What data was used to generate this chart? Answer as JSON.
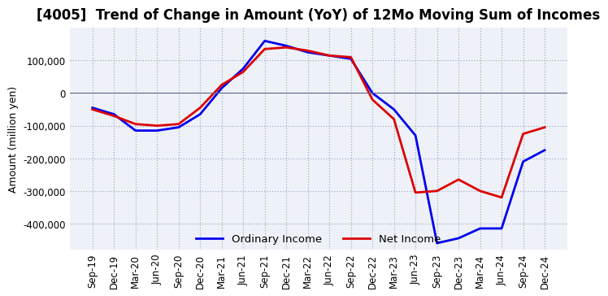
{
  "title": "[4005]  Trend of Change in Amount (YoY) of 12Mo Moving Sum of Incomes",
  "ylabel": "Amount (million yen)",
  "title_fontsize": 12,
  "label_fontsize": 9,
  "tick_fontsize": 8.5,
  "background_color": "#ffffff",
  "plot_bg_color": "#eef2f8",
  "grid_color": "#aaaacc",
  "ordinary_income_color": "#0000ee",
  "net_income_color": "#dd0000",
  "x_labels": [
    "Sep-19",
    "Dec-19",
    "Mar-20",
    "Jun-20",
    "Sep-20",
    "Dec-20",
    "Mar-21",
    "Jun-21",
    "Sep-21",
    "Dec-21",
    "Mar-22",
    "Jun-22",
    "Sep-22",
    "Dec-22",
    "Mar-23",
    "Jun-23",
    "Sep-23",
    "Dec-23",
    "Mar-24",
    "Jun-24",
    "Sep-24",
    "Dec-24"
  ],
  "ordinary_income": [
    -45000,
    -65000,
    -115000,
    -115000,
    -105000,
    -65000,
    15000,
    75000,
    160000,
    145000,
    125000,
    115000,
    105000,
    0,
    -50000,
    -130000,
    -460000,
    -445000,
    -415000,
    -415000,
    -210000,
    -175000
  ],
  "net_income": [
    -50000,
    -70000,
    -95000,
    -100000,
    -95000,
    -45000,
    25000,
    65000,
    135000,
    140000,
    130000,
    115000,
    110000,
    -20000,
    -80000,
    -305000,
    -300000,
    -265000,
    -300000,
    -320000,
    -125000,
    -105000
  ],
  "ylim": [
    -480000,
    200000
  ],
  "yticks": [
    -400000,
    -300000,
    -200000,
    -100000,
    0,
    100000
  ]
}
